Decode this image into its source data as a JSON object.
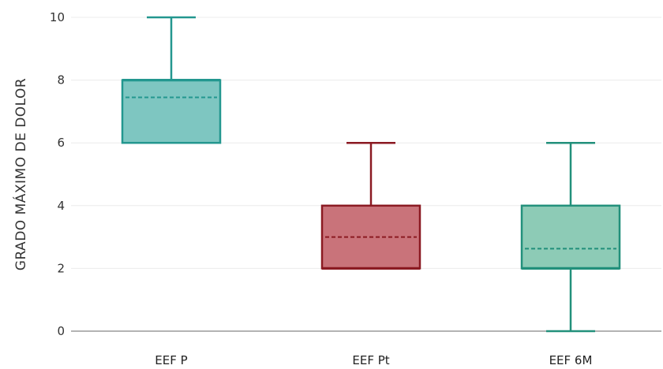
{
  "chart_data": {
    "type": "boxplot",
    "title": "",
    "xlabel": "",
    "ylabel": "GRADO MÁXIMO DE DOLOR",
    "ylim": [
      0,
      10
    ],
    "yticks": [
      "0",
      "2",
      "4",
      "6",
      "8",
      "10"
    ],
    "grid": true,
    "legend": "none",
    "categories": [
      "EEF P",
      "EEF Pt",
      "EEF 6M"
    ],
    "boxes": [
      {
        "category": "EEF P",
        "min": 6,
        "q1": 6,
        "median": 8,
        "q3": 8,
        "max": 10,
        "mean": 7.45,
        "stroke": "#23978f",
        "fill": "#7ec6c1"
      },
      {
        "category": "EEF Pt",
        "min": 2,
        "q1": 2,
        "median": 2,
        "q3": 4,
        "max": 6,
        "mean": 3.0,
        "stroke": "#8b1a22",
        "fill": "#c9737a"
      },
      {
        "category": "EEF 6M",
        "min": 0,
        "q1": 2,
        "median": 2,
        "q3": 4,
        "max": 6,
        "mean": 2.63,
        "stroke": "#22907b",
        "fill": "#8dcbb6"
      }
    ]
  }
}
